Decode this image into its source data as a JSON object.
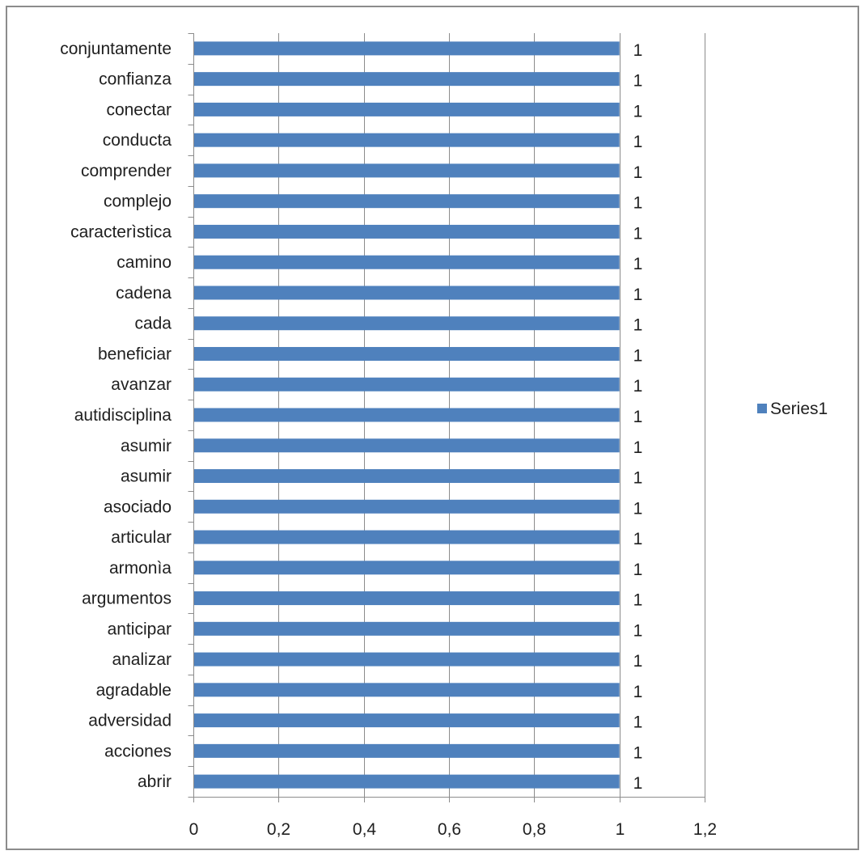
{
  "chart_data": {
    "type": "bar",
    "orientation": "horizontal",
    "categories": [
      "conjuntamente",
      "confianza",
      "conectar",
      "conducta",
      "comprender",
      "complejo",
      "caracterìstica",
      "camino",
      "cadena",
      "cada",
      "beneficiar",
      "avanzar",
      "autidisciplina",
      "asumir",
      "asumir",
      "asociado",
      "articular",
      "armonìa",
      "argumentos",
      "anticipar",
      "analizar",
      "agradable",
      "adversidad",
      "acciones",
      "abrir"
    ],
    "series": [
      {
        "name": "Series1",
        "values": [
          1,
          1,
          1,
          1,
          1,
          1,
          1,
          1,
          1,
          1,
          1,
          1,
          1,
          1,
          1,
          1,
          1,
          1,
          1,
          1,
          1,
          1,
          1,
          1,
          1
        ],
        "color": "#4f81bd"
      }
    ],
    "data_labels": [
      "1",
      "1",
      "1",
      "1",
      "1",
      "1",
      "1",
      "1",
      "1",
      "1",
      "1",
      "1",
      "1",
      "1",
      "1",
      "1",
      "1",
      "1",
      "1",
      "1",
      "1",
      "1",
      "1",
      "1",
      "1"
    ],
    "x_ticks": [
      "0",
      "0,2",
      "0,4",
      "0,6",
      "0,8",
      "1",
      "1,2"
    ],
    "xlim": [
      0,
      1.2
    ],
    "title": "",
    "xlabel": "",
    "ylabel": "",
    "grid": "vertical",
    "legend": {
      "position": "right",
      "entries": [
        "Series1"
      ]
    }
  }
}
